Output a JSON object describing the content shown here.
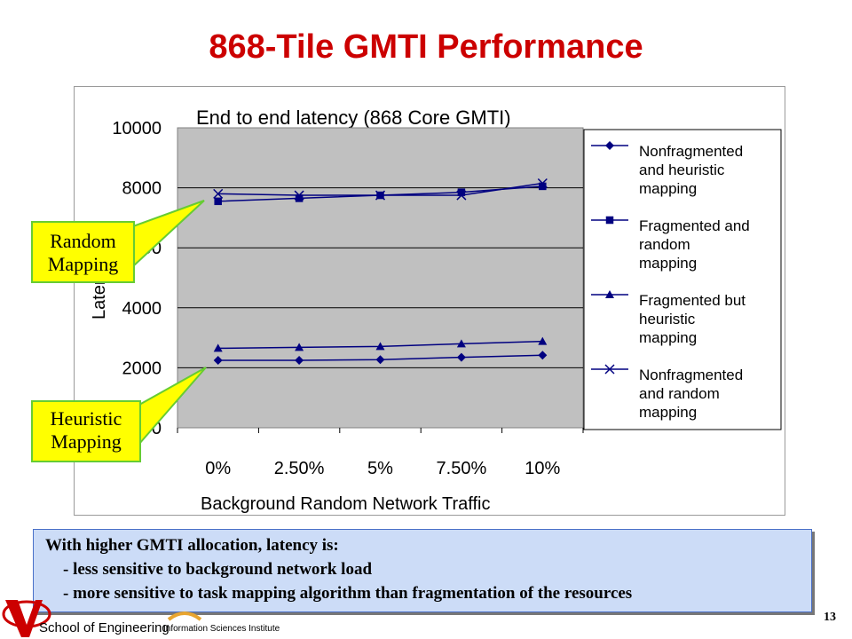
{
  "slide": {
    "title": "868-Tile GMTI Performance",
    "page_number": "13"
  },
  "callouts": {
    "random": [
      "Random",
      "Mapping"
    ],
    "heuristic": [
      "Heuristic",
      "Mapping"
    ]
  },
  "note": {
    "lines": [
      "With higher GMTI allocation, latency is:",
      "- less sensitive to background network load",
      "- more sensitive to task mapping algorithm than fragmentation of the resources"
    ]
  },
  "footer": {
    "school": "School of Engineering",
    "institute": "Information Sciences Institute"
  },
  "colors": {
    "title": "#cc0000",
    "plot_background": "#c0c0c0",
    "series": "#000080",
    "callout_fill": "#ffff00",
    "callout_border": "#66cc33",
    "note_fill": "#ccdcf7"
  },
  "chart_data": {
    "type": "line",
    "title": "End to end latency (868 Core GMTI)",
    "xlabel": "Background Random Network Traffic",
    "ylabel": "Latency",
    "categories": [
      "0%",
      "2.50%",
      "5%",
      "7.50%",
      "10%"
    ],
    "ylim": [
      0,
      10000
    ],
    "yticks": [
      "10000",
      "8000",
      "6000",
      "4000",
      "2000",
      "0"
    ],
    "grid": true,
    "legend_position": "right",
    "series": [
      {
        "name": "Nonfragmented and heuristic mapping",
        "legend_lines": [
          "Nonfragmented",
          "and heuristic",
          "mapping"
        ],
        "marker": "diamond",
        "values": [
          2250,
          2250,
          2270,
          2350,
          2420
        ]
      },
      {
        "name": "Fragmented and random mapping",
        "legend_lines": [
          "Fragmented and",
          "random",
          "mapping"
        ],
        "marker": "square",
        "values": [
          7550,
          7650,
          7750,
          7850,
          8050
        ]
      },
      {
        "name": "Fragmented but heuristic mapping",
        "legend_lines": [
          "Fragmented but",
          "heuristic",
          "mapping"
        ],
        "marker": "triangle",
        "values": [
          2650,
          2680,
          2710,
          2800,
          2880
        ]
      },
      {
        "name": "Nonfragmented and random mapping",
        "legend_lines": [
          "Nonfragmented",
          "and random",
          "mapping"
        ],
        "marker": "x",
        "values": [
          7800,
          7750,
          7750,
          7750,
          8150
        ]
      }
    ]
  }
}
